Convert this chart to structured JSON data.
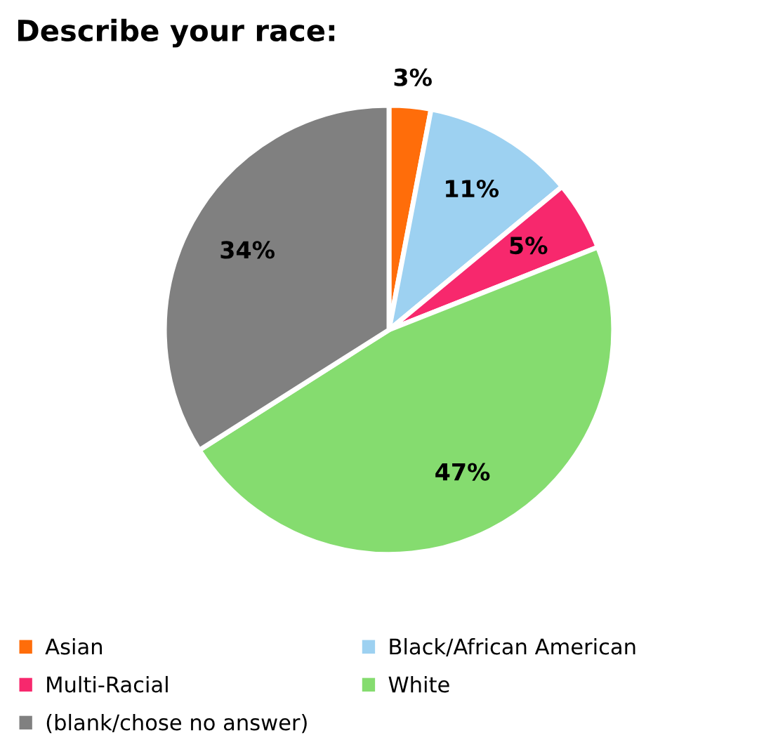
{
  "chart_data": {
    "type": "pie",
    "title": "Describe your race:",
    "categories": [
      "Asian",
      "Black/African American",
      "Multi-Racial",
      "White",
      "(blank/chose no answer)"
    ],
    "values": [
      3,
      11,
      5,
      47,
      34
    ],
    "colors": [
      "#ff6d0a",
      "#9dd1f1",
      "#f7286d",
      "#85dc6f",
      "#808080"
    ],
    "value_labels": [
      "3%",
      "11%",
      "5%",
      "47%",
      "34%"
    ],
    "legend": "bottom"
  }
}
